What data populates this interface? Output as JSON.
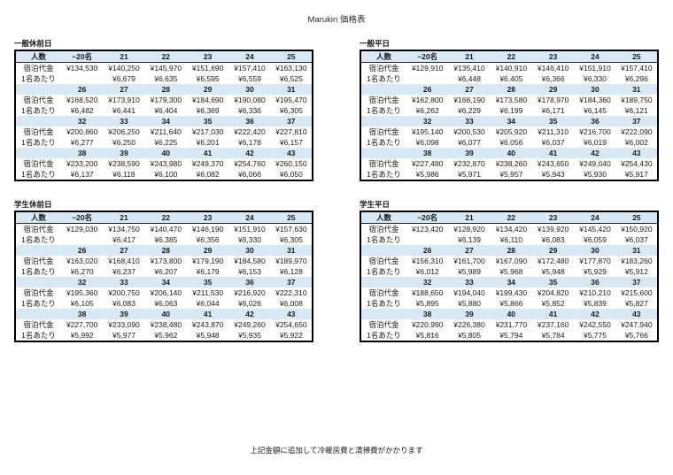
{
  "page": {
    "title": "Marukin 価格表",
    "footer": "上記金額に追加して冷暖房費と清掃費がかかります"
  },
  "row_labels": {
    "people": "人数",
    "price": "宿泊代金",
    "per_person": "1名あたり"
  },
  "colors": {
    "header_band": "#d9e8f5",
    "table_border": "#000000",
    "text": "#1a1a1a"
  },
  "tables": [
    {
      "title": "一般休前日",
      "groups": [
        {
          "headers": [
            "~20名",
            "21",
            "22",
            "23",
            "24",
            "25"
          ],
          "price": [
            "¥134,530",
            "¥140,250",
            "¥145,970",
            "¥151,690",
            "¥157,410",
            "¥163,130"
          ],
          "per_person": [
            "",
            "¥6,679",
            "¥6,635",
            "¥6,595",
            "¥6,559",
            "¥6,525"
          ]
        },
        {
          "headers": [
            "26",
            "27",
            "28",
            "29",
            "30",
            "31"
          ],
          "price": [
            "¥168,520",
            "¥173,910",
            "¥179,300",
            "¥184,690",
            "¥190,080",
            "¥195,470"
          ],
          "per_person": [
            "¥6,482",
            "¥6,441",
            "¥6,404",
            "¥6,369",
            "¥6,336",
            "¥6,305"
          ]
        },
        {
          "headers": [
            "32",
            "33",
            "34",
            "35",
            "36",
            "37"
          ],
          "price": [
            "¥200,860",
            "¥206,250",
            "¥211,640",
            "¥217,030",
            "¥222,420",
            "¥227,810"
          ],
          "per_person": [
            "¥6,277",
            "¥6,250",
            "¥6,225",
            "¥6,201",
            "¥6,178",
            "¥6,157"
          ]
        },
        {
          "headers": [
            "38",
            "39",
            "40",
            "41",
            "42",
            "43"
          ],
          "price": [
            "¥233,200",
            "¥238,590",
            "¥243,980",
            "¥249,370",
            "¥254,760",
            "¥260,150"
          ],
          "per_person": [
            "¥6,137",
            "¥6,118",
            "¥6,100",
            "¥6,082",
            "¥6,066",
            "¥6,050"
          ]
        }
      ]
    },
    {
      "title": "一般平日",
      "groups": [
        {
          "headers": [
            "~20名",
            "21",
            "22",
            "23",
            "24",
            "25"
          ],
          "price": [
            "¥129,910",
            "¥135,410",
            "¥140,910",
            "¥146,410",
            "¥151,910",
            "¥157,410"
          ],
          "per_person": [
            "",
            "¥6,448",
            "¥6,405",
            "¥6,366",
            "¥6,330",
            "¥6,296"
          ]
        },
        {
          "headers": [
            "26",
            "27",
            "28",
            "29",
            "30",
            "31"
          ],
          "price": [
            "¥162,800",
            "¥168,190",
            "¥173,580",
            "¥178,970",
            "¥184,360",
            "¥189,750"
          ],
          "per_person": [
            "¥6,262",
            "¥6,229",
            "¥6,199",
            "¥6,171",
            "¥6,145",
            "¥6,121"
          ]
        },
        {
          "headers": [
            "32",
            "33",
            "34",
            "35",
            "36",
            "37"
          ],
          "price": [
            "¥195,140",
            "¥200,530",
            "¥205,920",
            "¥211,310",
            "¥216,700",
            "¥222,090"
          ],
          "per_person": [
            "¥6,098",
            "¥6,077",
            "¥6,056",
            "¥6,037",
            "¥6,019",
            "¥6,002"
          ]
        },
        {
          "headers": [
            "38",
            "39",
            "40",
            "41",
            "42",
            "43"
          ],
          "price": [
            "¥227,480",
            "¥232,870",
            "¥238,260",
            "¥243,650",
            "¥249,040",
            "¥254,430"
          ],
          "per_person": [
            "¥5,986",
            "¥5,971",
            "¥5,957",
            "¥5,943",
            "¥5,930",
            "¥5,917"
          ]
        }
      ]
    },
    {
      "title": "学生休前日",
      "groups": [
        {
          "headers": [
            "~20名",
            "21",
            "22",
            "23",
            "24",
            "25"
          ],
          "price": [
            "¥129,030",
            "¥134,750",
            "¥140,470",
            "¥146,190",
            "¥151,910",
            "¥157,630"
          ],
          "per_person": [
            "",
            "¥6,417",
            "¥6,385",
            "¥6,356",
            "¥6,330",
            "¥6,305"
          ]
        },
        {
          "headers": [
            "26",
            "27",
            "28",
            "29",
            "30",
            "31"
          ],
          "price": [
            "¥163,020",
            "¥168,410",
            "¥173,800",
            "¥179,190",
            "¥184,580",
            "¥189,970"
          ],
          "per_person": [
            "¥6,270",
            "¥6,237",
            "¥6,207",
            "¥6,179",
            "¥6,153",
            "¥6,128"
          ]
        },
        {
          "headers": [
            "32",
            "33",
            "34",
            "35",
            "36",
            "37"
          ],
          "price": [
            "¥195,360",
            "¥200,750",
            "¥206,140",
            "¥211,530",
            "¥216,920",
            "¥222,310"
          ],
          "per_person": [
            "¥6,105",
            "¥6,083",
            "¥6,063",
            "¥6,044",
            "¥6,026",
            "¥6,008"
          ]
        },
        {
          "headers": [
            "38",
            "39",
            "40",
            "41",
            "42",
            "43"
          ],
          "price": [
            "¥227,700",
            "¥233,090",
            "¥238,480",
            "¥243,870",
            "¥249,260",
            "¥254,650"
          ],
          "per_person": [
            "¥5,992",
            "¥5,977",
            "¥5,962",
            "¥5,948",
            "¥5,935",
            "¥5,922"
          ]
        }
      ]
    },
    {
      "title": "学生平日",
      "groups": [
        {
          "headers": [
            "~20名",
            "21",
            "22",
            "23",
            "24",
            "25"
          ],
          "price": [
            "¥123,420",
            "¥128,920",
            "¥134,420",
            "¥139,920",
            "¥145,420",
            "¥150,920"
          ],
          "per_person": [
            "",
            "¥6,139",
            "¥6,110",
            "¥6,083",
            "¥6,059",
            "¥6,037"
          ]
        },
        {
          "headers": [
            "26",
            "27",
            "28",
            "29",
            "30",
            "31"
          ],
          "price": [
            "¥156,310",
            "¥161,700",
            "¥167,090",
            "¥172,480",
            "¥177,870",
            "¥183,260"
          ],
          "per_person": [
            "¥6,012",
            "¥5,989",
            "¥5,968",
            "¥5,948",
            "¥5,929",
            "¥5,912"
          ]
        },
        {
          "headers": [
            "32",
            "33",
            "34",
            "35",
            "36",
            "37"
          ],
          "price": [
            "¥188,650",
            "¥194,040",
            "¥199,430",
            "¥204,820",
            "¥210,210",
            "¥215,600"
          ],
          "per_person": [
            "¥5,895",
            "¥5,880",
            "¥5,866",
            "¥5,852",
            "¥5,839",
            "¥5,827"
          ]
        },
        {
          "headers": [
            "38",
            "39",
            "40",
            "41",
            "42",
            "43"
          ],
          "price": [
            "¥220,990",
            "¥226,380",
            "¥231,770",
            "¥237,160",
            "¥242,550",
            "¥247,940"
          ],
          "per_person": [
            "¥5,816",
            "¥5,805",
            "¥5,794",
            "¥5,784",
            "¥5,775",
            "¥5,766"
          ]
        }
      ]
    }
  ]
}
